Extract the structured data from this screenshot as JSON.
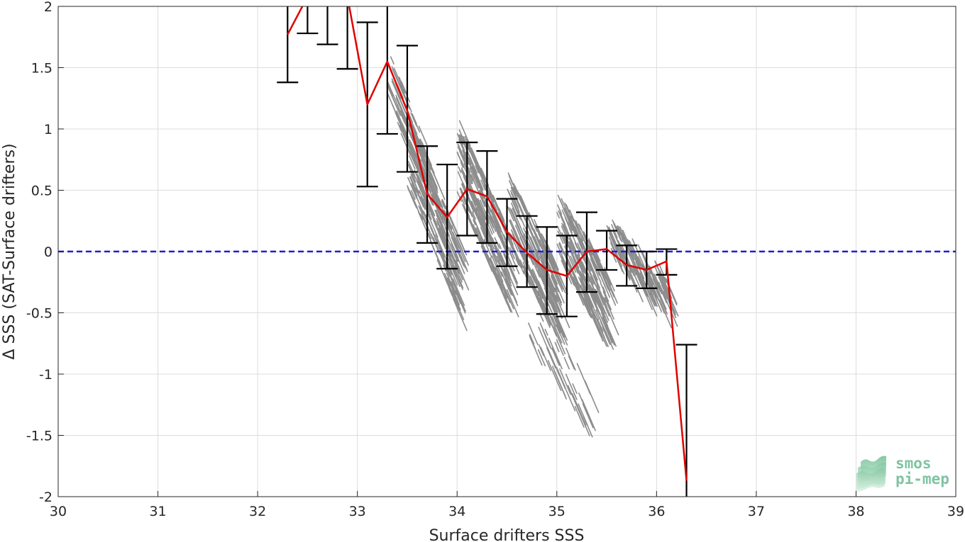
{
  "chart_data": {
    "type": "scatter",
    "xlabel": "Surface drifters SSS",
    "ylabel": "Δ SSS (SAT-Surface drifters)",
    "xlim": [
      30,
      39
    ],
    "ylim": [
      -2,
      2
    ],
    "x_ticks": [
      "30",
      "31",
      "32",
      "33",
      "34",
      "35",
      "36",
      "37",
      "38",
      "39"
    ],
    "y_ticks": [
      "-2",
      "-1.5",
      "-1",
      "-0.5",
      "0",
      "0.5",
      "1",
      "1.5",
      "2"
    ],
    "grid": true,
    "reference_line": {
      "y": 0,
      "style": "dashed",
      "color": "#1f1fd0"
    },
    "scatter_color": "#8c8c8c",
    "mean_line_color": "#e00000",
    "errorbar_color": "#000000",
    "scatter_clusters": [
      {
        "x0": 33.3,
        "x1": 33.7,
        "y_center": 1.05,
        "slope": -2.1,
        "spread": 0.22,
        "n": 110
      },
      {
        "x0": 33.5,
        "x1": 34.0,
        "y_center": 0.35,
        "slope": -2.0,
        "spread": 0.32,
        "n": 230
      },
      {
        "x0": 34.0,
        "x1": 34.5,
        "y_center": 0.35,
        "slope": -1.8,
        "spread": 0.32,
        "n": 260
      },
      {
        "x0": 34.5,
        "x1": 35.0,
        "y_center": 0.0,
        "slope": -1.5,
        "spread": 0.3,
        "n": 240
      },
      {
        "x0": 35.0,
        "x1": 35.5,
        "y_center": -0.1,
        "slope": -1.3,
        "spread": 0.3,
        "n": 220
      },
      {
        "x0": 35.5,
        "x1": 36.1,
        "y_center": -0.08,
        "slope": -0.8,
        "spread": 0.15,
        "n": 150
      },
      {
        "x0": 34.7,
        "x1": 35.3,
        "y_center": -0.85,
        "slope": -1.2,
        "spread": 0.2,
        "n": 45
      }
    ],
    "mean_series": {
      "name": "",
      "x": [
        32.3,
        32.5,
        32.7,
        32.9,
        33.1,
        33.3,
        33.5,
        33.7,
        33.9,
        34.1,
        34.3,
        34.5,
        34.7,
        34.9,
        35.1,
        35.3,
        35.5,
        35.7,
        35.9,
        36.1,
        36.3
      ],
      "y": [
        1.77,
        2.08,
        2.15,
        2.08,
        1.2,
        1.55,
        1.15,
        0.47,
        0.28,
        0.51,
        0.45,
        0.16,
        -0.01,
        -0.15,
        -0.2,
        0.0,
        0.02,
        -0.11,
        -0.15,
        -0.08,
        -1.87
      ]
    },
    "error_bars": [
      {
        "x": 32.3,
        "low": 1.38,
        "high": 2.15
      },
      {
        "x": 32.5,
        "low": 1.78,
        "high": 2.4
      },
      {
        "x": 32.7,
        "low": 1.69,
        "high": 2.6
      },
      {
        "x": 32.9,
        "low": 1.49,
        "high": 2.7
      },
      {
        "x": 33.1,
        "low": 0.53,
        "high": 1.87
      },
      {
        "x": 33.3,
        "low": 0.96,
        "high": 2.14
      },
      {
        "x": 33.5,
        "low": 0.65,
        "high": 1.68
      },
      {
        "x": 33.7,
        "low": 0.07,
        "high": 0.86
      },
      {
        "x": 33.9,
        "low": -0.14,
        "high": 0.71
      },
      {
        "x": 34.1,
        "low": 0.13,
        "high": 0.89
      },
      {
        "x": 34.3,
        "low": 0.07,
        "high": 0.82
      },
      {
        "x": 34.5,
        "low": -0.12,
        "high": 0.43
      },
      {
        "x": 34.7,
        "low": -0.29,
        "high": 0.29
      },
      {
        "x": 34.9,
        "low": -0.51,
        "high": 0.2
      },
      {
        "x": 35.1,
        "low": -0.53,
        "high": 0.13
      },
      {
        "x": 35.3,
        "low": -0.33,
        "high": 0.32
      },
      {
        "x": 35.5,
        "low": -0.15,
        "high": 0.17
      },
      {
        "x": 35.7,
        "low": -0.28,
        "high": 0.05
      },
      {
        "x": 35.9,
        "low": -0.3,
        "high": 0.0
      },
      {
        "x": 36.1,
        "low": -0.19,
        "high": 0.02
      },
      {
        "x": 36.3,
        "low": -2.1,
        "high": -0.76
      }
    ]
  },
  "logo": {
    "line1": "smos",
    "line2": "pi-mep",
    "icon": "smos-pi-mep-logo-icon",
    "color": "#7fc4a1"
  }
}
